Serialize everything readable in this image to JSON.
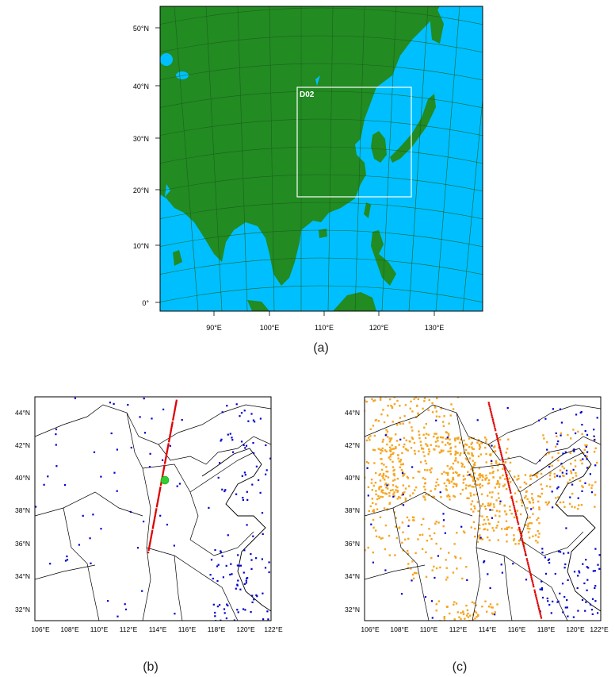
{
  "panel_a": {
    "caption": "(a)",
    "domain_label": "D02",
    "lat_labels": [
      "50°N",
      "40°N",
      "30°N",
      "20°N",
      "10°N",
      "0°"
    ],
    "lon_labels": [
      "90°E",
      "100°E",
      "110°E",
      "120°E",
      "130°E"
    ],
    "colors": {
      "land": "#228b22",
      "ocean": "#00bfff",
      "box": "#ffffff"
    }
  },
  "panel_b": {
    "caption": "(b)",
    "lat_labels": [
      "44°N",
      "42°N",
      "40°N",
      "38°N",
      "36°N",
      "34°N",
      "32°N"
    ],
    "lon_labels": [
      "106°E",
      "108°E",
      "110°E",
      "112°E",
      "114°E",
      "116°E",
      "118°E",
      "120°E",
      "122°E"
    ],
    "colors": {
      "stations": "#0000cc",
      "track": "#e00000",
      "site": "#33cc33"
    }
  },
  "panel_c": {
    "caption": "(c)",
    "lat_labels": [
      "44°N",
      "42°N",
      "40°N",
      "38°N",
      "36°N",
      "34°N",
      "32°N"
    ],
    "lon_labels": [
      "106°E",
      "108°E",
      "110°E",
      "112°E",
      "114°E",
      "116°E",
      "118°E",
      "120°E",
      "122°E"
    ],
    "colors": {
      "stations": "#0000cc",
      "track": "#e00000",
      "fire": "#f5a623"
    }
  }
}
